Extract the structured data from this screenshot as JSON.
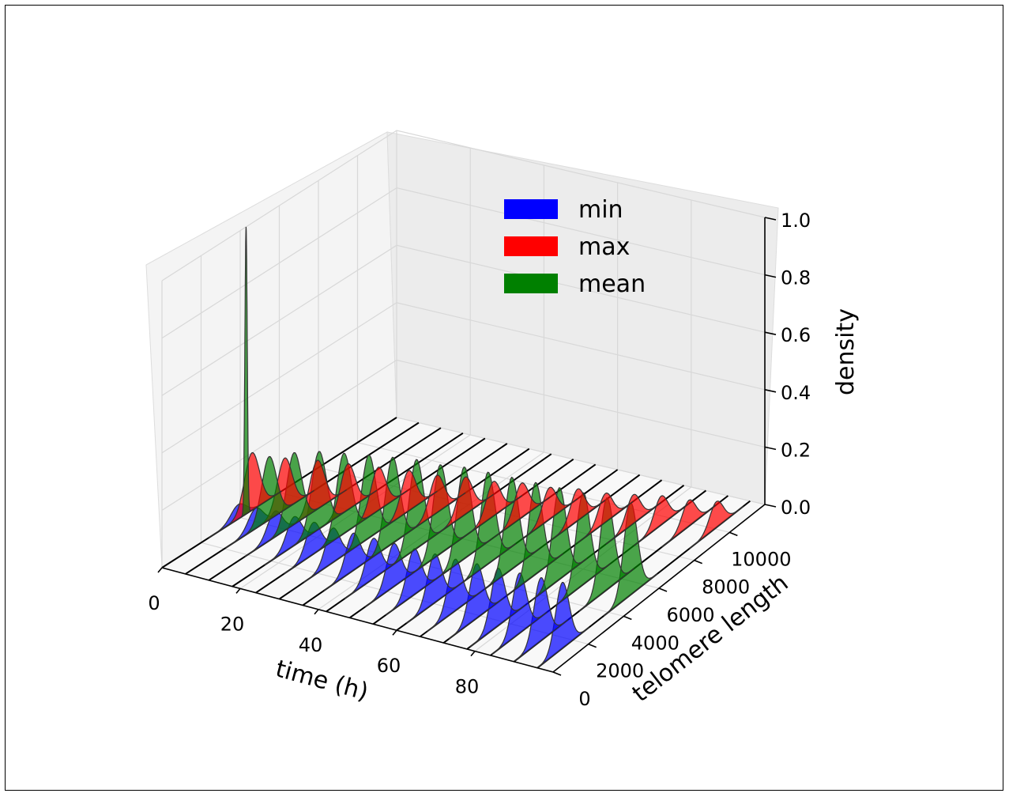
{
  "chart_data": {
    "type": "3d-ridgeline",
    "xlabel": "time (h)",
    "ylabel": "telomere length",
    "zlabel": "density",
    "x_ticks": [
      0,
      20,
      40,
      60,
      80
    ],
    "y_ticks": [
      0,
      2000,
      4000,
      6000,
      8000,
      10000
    ],
    "z_ticks": [
      "0.0",
      "0.2",
      "0.4",
      "0.6",
      "0.8",
      "1.0"
    ],
    "xlim": [
      0,
      100
    ],
    "ylim": [
      0,
      12000
    ],
    "zlim": [
      0,
      1.0
    ],
    "legend_position": "top-right",
    "legend": [
      {
        "label": "min",
        "color": "#0000ff"
      },
      {
        "label": "max",
        "color": "#ff0000"
      },
      {
        "label": "mean",
        "color": "#008000"
      }
    ],
    "time_points": [
      0,
      6,
      12,
      18,
      24,
      30,
      36,
      42,
      48,
      54,
      60,
      66,
      72,
      78,
      84,
      90,
      96
    ],
    "series": [
      {
        "name": "min",
        "color": "#0000ff",
        "centers": [
          3900,
          3600,
          3400,
          3200,
          3000,
          2800,
          2650,
          2500,
          2350,
          2200,
          2050,
          1900,
          1800,
          1700,
          1600,
          1500,
          1400
        ],
        "peaks": [
          0.05,
          0.07,
          0.09,
          0.1,
          0.11,
          0.12,
          0.13,
          0.14,
          0.15,
          0.16,
          0.17,
          0.18,
          0.19,
          0.2,
          0.21,
          0.22,
          0.23
        ]
      },
      {
        "name": "max",
        "color": "#ff0000",
        "centers": [
          4600,
          5100,
          5600,
          6000,
          6400,
          6800,
          7100,
          7400,
          7700,
          8000,
          8300,
          8600,
          8900,
          9200,
          9500,
          9800,
          10100
        ],
        "peaks": [
          0.2,
          0.18,
          0.17,
          0.16,
          0.15,
          0.14,
          0.13,
          0.13,
          0.12,
          0.12,
          0.11,
          0.11,
          0.1,
          0.1,
          0.1,
          0.09,
          0.09
        ]
      },
      {
        "name": "mean",
        "color": "#008000",
        "centers": [
          4300,
          4300,
          4400,
          4500,
          4600,
          4700,
          4750,
          4800,
          4850,
          4900,
          4950,
          5000,
          5050,
          5100,
          5150,
          5200,
          5250
        ],
        "peaks": [
          1.0,
          0.22,
          0.25,
          0.27,
          0.28,
          0.29,
          0.3,
          0.31,
          0.31,
          0.32,
          0.32,
          0.32,
          0.32,
          0.32,
          0.32,
          0.32,
          0.32
        ]
      }
    ]
  }
}
